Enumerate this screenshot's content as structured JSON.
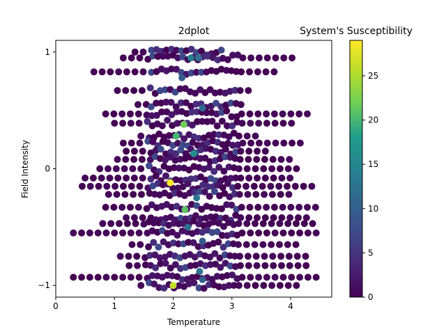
{
  "chart_data": {
    "type": "scatter",
    "title": "2dplot",
    "colorbar_title": "System's Susceptibility",
    "xlabel": "Temperature",
    "ylabel": "Field Intensity",
    "xlim": [
      0,
      4.7
    ],
    "ylim": [
      -1.1,
      1.1
    ],
    "xticks": [
      0,
      1,
      2,
      3,
      4
    ],
    "yticks": [
      -1,
      0,
      1
    ],
    "colorbar": {
      "colormap": "viridis",
      "range": [
        0,
        29
      ],
      "ticks": [
        0,
        5,
        10,
        15,
        20,
        25
      ]
    },
    "series": [
      {
        "band_y": [
          1.0,
          0.95,
          0.83,
          0.67,
          0.55,
          0.47,
          0.39,
          0.28,
          0.22,
          0.15,
          0.08,
          0.0,
          -0.08,
          -0.15,
          -0.22,
          -0.33,
          -0.42,
          -0.47,
          -0.55,
          -0.65,
          -0.75,
          -0.83,
          -0.93,
          -1.0
        ],
        "band_xmin": [
          1.35,
          1.15,
          0.65,
          1.05,
          1.4,
          0.85,
          1.0,
          1.45,
          1.15,
          1.2,
          1.05,
          0.75,
          0.5,
          0.45,
          0.9,
          0.85,
          1.2,
          0.8,
          0.3,
          1.3,
          1.1,
          1.25,
          0.3,
          1.45
        ],
        "band_xmax": [
          2.9,
          4.05,
          3.75,
          3.3,
          3.2,
          4.3,
          4.05,
          3.5,
          4.3,
          3.65,
          4.1,
          4.2,
          4.0,
          4.4,
          4.1,
          4.45,
          4.4,
          4.4,
          4.5,
          4.1,
          4.3,
          4.3,
          4.5,
          4.2
        ],
        "outer_step": 0.14
      }
    ],
    "highlights": [
      {
        "x": 2.3,
        "y": 0.95,
        "value": 14
      },
      {
        "x": 2.43,
        "y": 0.95,
        "value": 12
      },
      {
        "x": 2.15,
        "y": 0.78,
        "value": 10
      },
      {
        "x": 2.5,
        "y": 0.52,
        "value": 11
      },
      {
        "x": 2.18,
        "y": 0.38,
        "value": 22
      },
      {
        "x": 2.05,
        "y": 0.28,
        "value": 20
      },
      {
        "x": 2.35,
        "y": 0.13,
        "value": 16
      },
      {
        "x": 1.95,
        "y": -0.12,
        "value": 29
      },
      {
        "x": 2.4,
        "y": -0.25,
        "value": 13
      },
      {
        "x": 2.2,
        "y": -0.35,
        "value": 21
      },
      {
        "x": 2.25,
        "y": -0.5,
        "value": 12
      },
      {
        "x": 2.5,
        "y": -0.62,
        "value": 9
      },
      {
        "x": 2.45,
        "y": -0.88,
        "value": 12
      },
      {
        "x": 2.5,
        "y": -0.95,
        "value": 10
      },
      {
        "x": 2.0,
        "y": -1.0,
        "value": 26
      }
    ]
  }
}
